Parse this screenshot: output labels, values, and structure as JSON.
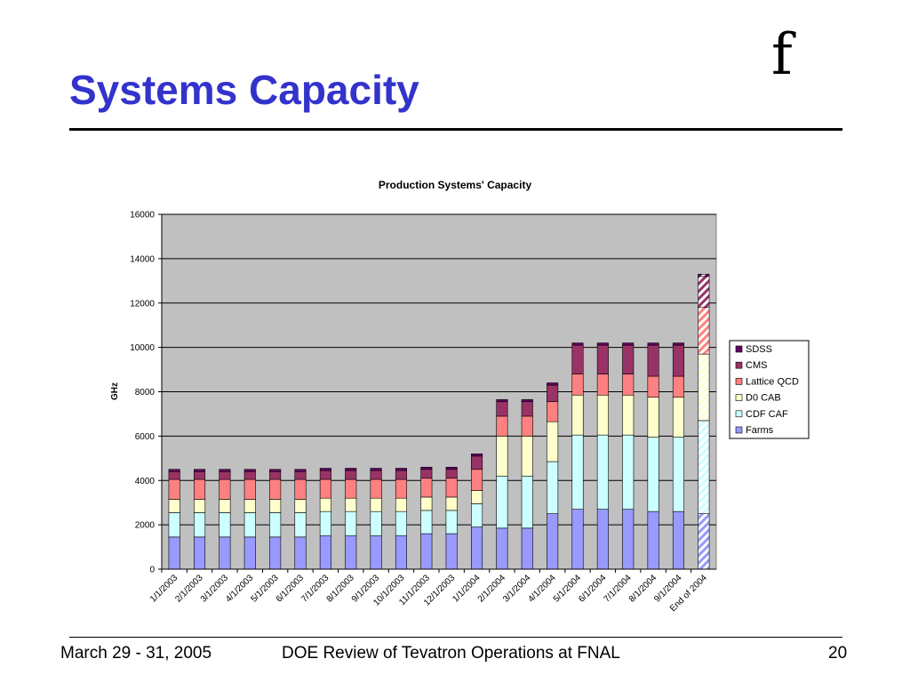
{
  "slide": {
    "title": "Systems Capacity",
    "logo_text": "f",
    "footer": {
      "left": "March 29 - 31, 2005",
      "center": "DOE Review of Tevatron Operations at FNAL",
      "right": "20"
    }
  },
  "chart_data": {
    "type": "bar",
    "stacked": true,
    "title": "Production Systems' Capacity",
    "xlabel": "",
    "ylabel": "GHz",
    "ylim": [
      0,
      16000
    ],
    "yticks": [
      0,
      2000,
      4000,
      6000,
      8000,
      10000,
      12000,
      14000,
      16000
    ],
    "grid": true,
    "legend_position": "right",
    "plot_background": "#c0c0c0",
    "categories": [
      "1/1/2003",
      "2/1/2003",
      "3/1/2003",
      "4/1/2003",
      "5/1/2003",
      "6/1/2003",
      "7/1/2003",
      "8/1/2003",
      "9/1/2003",
      "10/1/2003",
      "11/1/2003",
      "12/1/2003",
      "1/1/2004",
      "2/1/2004",
      "3/1/2004",
      "4/1/2004",
      "5/1/2004",
      "6/1/2004",
      "7/1/2004",
      "8/1/2004",
      "9/1/2004",
      "End of 2004"
    ],
    "projected_category": "End of 2004",
    "series": [
      {
        "name": "Farms",
        "color": "#9999ff",
        "values": [
          1450,
          1450,
          1450,
          1450,
          1450,
          1450,
          1500,
          1500,
          1500,
          1500,
          1600,
          1600,
          1900,
          1850,
          1850,
          2500,
          2700,
          2700,
          2700,
          2600,
          2600,
          2500
        ]
      },
      {
        "name": "CDF CAF",
        "color": "#ccffff",
        "values": [
          1100,
          1100,
          1100,
          1100,
          1100,
          1100,
          1100,
          1100,
          1100,
          1100,
          1050,
          1050,
          1050,
          2350,
          2350,
          2350,
          3350,
          3350,
          3350,
          3350,
          3350,
          4200
        ]
      },
      {
        "name": "D0 CAB",
        "color": "#ffffcc",
        "values": [
          600,
          600,
          600,
          600,
          600,
          600,
          600,
          600,
          600,
          600,
          600,
          600,
          600,
          1800,
          1800,
          1800,
          1800,
          1800,
          1800,
          1800,
          1800,
          3000
        ]
      },
      {
        "name": "Lattice QCD",
        "color": "#ff8080",
        "values": [
          900,
          900,
          900,
          900,
          900,
          900,
          850,
          850,
          850,
          850,
          850,
          850,
          950,
          900,
          900,
          900,
          950,
          950,
          950,
          950,
          950,
          2100
        ]
      },
      {
        "name": "CMS",
        "color": "#993366",
        "values": [
          350,
          350,
          350,
          350,
          350,
          350,
          400,
          400,
          400,
          400,
          400,
          400,
          600,
          650,
          650,
          750,
          1300,
          1300,
          1300,
          1400,
          1400,
          1400
        ]
      },
      {
        "name": "SDSS",
        "color": "#660066",
        "values": [
          100,
          100,
          100,
          100,
          100,
          100,
          100,
          100,
          100,
          100,
          100,
          100,
          100,
          100,
          100,
          100,
          100,
          100,
          100,
          100,
          100,
          100
        ]
      }
    ]
  }
}
